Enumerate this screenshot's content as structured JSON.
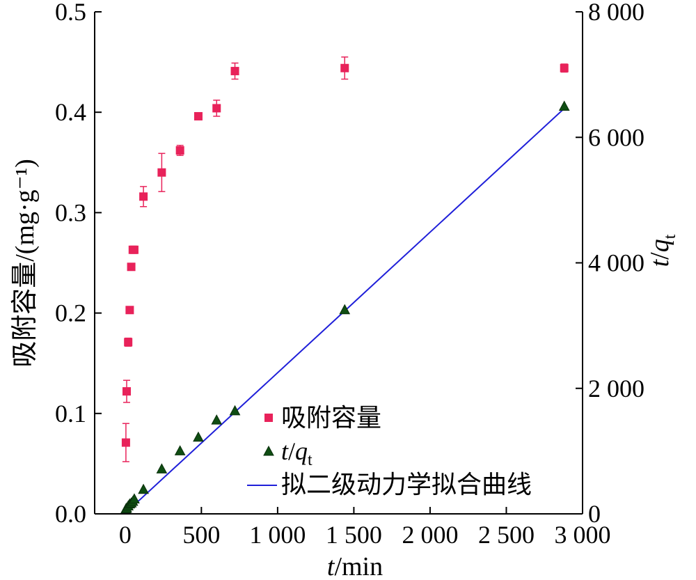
{
  "chart_data": {
    "type": "scatter",
    "xlabel": {
      "var": "t",
      "unit": "/min"
    },
    "ylabel_left": "吸附容量/(mg·g⁻¹)",
    "ylabel_right": {
      "var": "t",
      "slash": "/",
      "var2": "q",
      "sub": "t"
    },
    "xlim": [
      -200,
      3000
    ],
    "ylim_left": [
      0.0,
      0.5
    ],
    "ylim_right": [
      0,
      8000
    ],
    "x_ticks": [
      0,
      500,
      1000,
      1500,
      2000,
      2500,
      3000
    ],
    "x_tick_labels": [
      "0",
      "500",
      "1 000",
      "1 500",
      "2 000",
      "2 500",
      "3 000"
    ],
    "y_left_ticks": [
      0.0,
      0.1,
      0.2,
      0.3,
      0.4,
      0.5
    ],
    "y_left_tick_labels": [
      "0.0",
      "0.1",
      "0.2",
      "0.3",
      "0.4",
      "0.5"
    ],
    "y_right_ticks": [
      0,
      2000,
      4000,
      6000,
      8000
    ],
    "y_right_tick_labels": [
      "0",
      "2 000",
      "4 000",
      "6 000",
      "8 000"
    ],
    "grid": false,
    "legend_position": "bottom-right",
    "series": [
      {
        "name": "吸附容量",
        "axis": "left",
        "marker": "square",
        "color": "#e8225a",
        "x": [
          5,
          10,
          20,
          30,
          40,
          50,
          60,
          120,
          240,
          360,
          480,
          600,
          720,
          1440,
          2880
        ],
        "y": [
          0.071,
          0.122,
          0.171,
          0.203,
          0.246,
          0.263,
          0.263,
          0.316,
          0.34,
          0.362,
          0.396,
          0.404,
          0.441,
          0.444,
          0.444
        ],
        "error": [
          0.019,
          0.011,
          0.004,
          0.003,
          0.003,
          0.003,
          0.003,
          0.01,
          0.019,
          0.005,
          0.003,
          0.008,
          0.008,
          0.011,
          0.004
        ]
      },
      {
        "name": "t/qt",
        "name_parts": {
          "var": "t",
          "slash": "/",
          "var2": "q",
          "sub": "t"
        },
        "axis": "right",
        "marker": "triangle",
        "color": "#0f4d12",
        "x": [
          5,
          10,
          20,
          30,
          40,
          50,
          60,
          120,
          240,
          360,
          480,
          600,
          720,
          1440,
          2880
        ],
        "y": [
          70,
          82,
          117,
          148,
          163,
          190,
          228,
          380,
          706,
          994,
          1212,
          1485,
          1633,
          3243,
          6486
        ]
      },
      {
        "name": "拟二级动力学拟合曲线",
        "axis": "right",
        "type": "line",
        "color": "#1f1fd9",
        "x": [
          5,
          2880
        ],
        "y": [
          20,
          6460
        ]
      }
    ]
  }
}
